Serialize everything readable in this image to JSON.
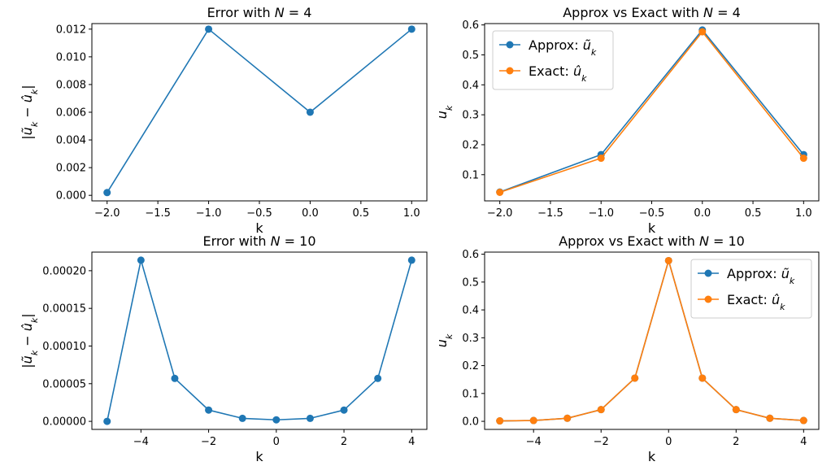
{
  "chart_data": [
    {
      "type": "line",
      "title": "Error with N = 4",
      "title_prefix": "Error with ",
      "title_var": "N",
      "title_suffix": " = 4",
      "xlabel": "k",
      "ylabel": "|ũk − ûk|",
      "xlim": [
        -2.15,
        1.15
      ],
      "ylim": [
        -0.0004,
        0.0124
      ],
      "xticks": [
        -2.0,
        -1.5,
        -1.0,
        -0.5,
        0.0,
        0.5,
        1.0
      ],
      "xtick_labels": [
        "−2.0",
        "−1.5",
        "−1.0",
        "−0.5",
        "0.0",
        "0.5",
        "1.0"
      ],
      "yticks": [
        0.0,
        0.002,
        0.004,
        0.006,
        0.008,
        0.01,
        0.012
      ],
      "ytick_labels": [
        "0.000",
        "0.002",
        "0.004",
        "0.006",
        "0.008",
        "0.010",
        "0.012"
      ],
      "legend": null,
      "series": [
        {
          "color": "#1f77b4",
          "x": [
            -2,
            -1,
            0,
            1
          ],
          "values": [
            0.0002,
            0.012,
            0.006,
            0.012
          ]
        }
      ]
    },
    {
      "type": "line",
      "title": "Approx vs Exact with N = 4",
      "title_prefix": "Approx vs Exact with ",
      "title_var": "N",
      "title_suffix": " = 4",
      "xlabel": "k",
      "ylabel": "uk",
      "xlim": [
        -2.15,
        1.15
      ],
      "ylim": [
        0.0125,
        0.6045
      ],
      "xticks": [
        -2.0,
        -1.5,
        -1.0,
        -0.5,
        0.0,
        0.5,
        1.0
      ],
      "xtick_labels": [
        "−2.0",
        "−1.5",
        "−1.0",
        "−0.5",
        "0.0",
        "0.5",
        "1.0"
      ],
      "yticks": [
        0.1,
        0.2,
        0.3,
        0.4,
        0.5,
        0.6
      ],
      "ytick_labels": [
        "0.1",
        "0.2",
        "0.3",
        "0.4",
        "0.5",
        "0.6"
      ],
      "legend": "top-left",
      "series": [
        {
          "name": "Approx: ũk",
          "color": "#1f77b4",
          "x": [
            -2,
            -1,
            0,
            1
          ],
          "values": [
            0.042,
            0.167,
            0.583,
            0.167
          ]
        },
        {
          "name": "Exact: ûk",
          "color": "#ff7f0e",
          "x": [
            -2,
            -1,
            0,
            1
          ],
          "values": [
            0.041,
            0.155,
            0.577,
            0.155
          ]
        }
      ]
    },
    {
      "type": "line",
      "title": "Error with N = 10",
      "title_prefix": "Error with ",
      "title_var": "N",
      "title_suffix": " = 10",
      "xlabel": "k",
      "ylabel": "|ũk − ûk|",
      "xlim": [
        -5.45,
        4.45
      ],
      "ylim": [
        -1.07e-05,
        0.0002247
      ],
      "xticks": [
        -4,
        -2,
        0,
        2,
        4
      ],
      "xtick_labels": [
        "−4",
        "−2",
        "0",
        "2",
        "4"
      ],
      "yticks": [
        0.0,
        5e-05,
        0.0001,
        0.00015,
        0.0002
      ],
      "ytick_labels": [
        "0.00000",
        "0.00005",
        "0.00010",
        "0.00015",
        "0.00020"
      ],
      "legend": null,
      "series": [
        {
          "color": "#1f77b4",
          "x": [
            -5,
            -4,
            -3,
            -2,
            -1,
            0,
            1,
            2,
            3,
            4
          ],
          "values": [
            0.0,
            0.000214,
            5.7e-05,
            1.5e-05,
            4e-06,
            2e-06,
            4e-06,
            1.5e-05,
            5.7e-05,
            0.000214
          ]
        }
      ]
    },
    {
      "type": "line",
      "title": "Approx vs Exact with N = 10",
      "title_prefix": "Approx vs Exact with ",
      "title_var": "N",
      "title_suffix": " = 10",
      "xlabel": "k",
      "ylabel": "uk",
      "xlim": [
        -5.45,
        4.45
      ],
      "ylim": [
        -0.029,
        0.6075
      ],
      "xticks": [
        -4,
        -2,
        0,
        2,
        4
      ],
      "xtick_labels": [
        "−4",
        "−2",
        "0",
        "2",
        "4"
      ],
      "yticks": [
        0.0,
        0.1,
        0.2,
        0.3,
        0.4,
        0.5,
        0.6
      ],
      "ytick_labels": [
        "0.0",
        "0.1",
        "0.2",
        "0.3",
        "0.4",
        "0.5",
        "0.6"
      ],
      "legend": "top-right",
      "series": [
        {
          "name": "Approx: ũk",
          "color": "#1f77b4",
          "x": [
            -5,
            -4,
            -3,
            -2,
            -1,
            0,
            1,
            2,
            3,
            4
          ],
          "values": [
            0.0015,
            0.003,
            0.011,
            0.042,
            0.155,
            0.577,
            0.155,
            0.042,
            0.011,
            0.003
          ]
        },
        {
          "name": "Exact: ûk",
          "color": "#ff7f0e",
          "x": [
            -5,
            -4,
            -3,
            -2,
            -1,
            0,
            1,
            2,
            3,
            4
          ],
          "values": [
            0.0015,
            0.003,
            0.011,
            0.042,
            0.155,
            0.577,
            0.155,
            0.042,
            0.011,
            0.003
          ]
        }
      ]
    }
  ],
  "labels": {
    "k_symbol": "k",
    "u_symbol": "u",
    "approx_prefix": "Approx: ",
    "exact_prefix": "Exact: ",
    "u_tilde": "ũ",
    "u_hat": "û",
    "abs_bar": "|",
    "minus": " − "
  }
}
